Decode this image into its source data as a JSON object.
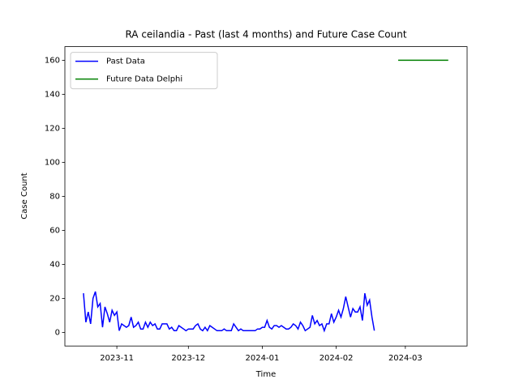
{
  "chart_data": {
    "type": "line",
    "title": "RA ceilandia - Past (last 4 months) and Future Case Count",
    "x_label": "Time",
    "y_label": "Case Count",
    "xlim": [
      19640.2,
      19808.9
    ],
    "ylim": [
      -8,
      168
    ],
    "xticks": [
      {
        "value": 19662,
        "label": "2023-11"
      },
      {
        "value": 19692,
        "label": "2023-12"
      },
      {
        "value": 19723,
        "label": "2024-01"
      },
      {
        "value": 19754,
        "label": "2024-02"
      },
      {
        "value": 19783,
        "label": "2024-03"
      }
    ],
    "yticks": [
      0,
      20,
      40,
      60,
      80,
      100,
      120,
      140,
      160
    ],
    "legend": "upper left",
    "series": [
      {
        "name": "Past Data",
        "color": "#0000ff",
        "x": [
          19648,
          19649,
          19650,
          19651,
          19652,
          19653,
          19654,
          19655,
          19656,
          19657,
          19658,
          19659,
          19660,
          19661,
          19662,
          19663,
          19664,
          19665,
          19666,
          19667,
          19668,
          19669,
          19670,
          19671,
          19672,
          19673,
          19674,
          19675,
          19676,
          19677,
          19678,
          19679,
          19680,
          19681,
          19682,
          19683,
          19684,
          19685,
          19686,
          19687,
          19688,
          19689,
          19690,
          19691,
          19692,
          19693,
          19694,
          19695,
          19696,
          19697,
          19698,
          19699,
          19700,
          19701,
          19702,
          19703,
          19704,
          19705,
          19706,
          19707,
          19708,
          19709,
          19710,
          19711,
          19712,
          19713,
          19714,
          19715,
          19716,
          19717,
          19718,
          19719,
          19720,
          19721,
          19722,
          19723,
          19724,
          19725,
          19726,
          19727,
          19728,
          19729,
          19730,
          19731,
          19732,
          19733,
          19734,
          19735,
          19736,
          19737,
          19738,
          19739,
          19740,
          19741,
          19742,
          19743,
          19744,
          19745,
          19746,
          19747,
          19748,
          19749,
          19750,
          19751,
          19752,
          19753,
          19754,
          19755,
          19756,
          19757,
          19758,
          19759,
          19760,
          19761,
          19762,
          19763,
          19764,
          19765,
          19766,
          19767,
          19768,
          19769,
          19770
        ],
        "values": [
          23,
          6,
          12,
          5,
          20,
          24,
          15,
          17,
          3,
          15,
          11,
          6,
          13,
          10,
          12,
          1,
          5,
          4,
          3,
          4,
          9,
          3,
          4,
          6,
          2,
          2,
          6,
          3,
          6,
          4,
          5,
          2,
          2,
          5,
          5,
          5,
          2,
          3,
          1,
          1,
          4,
          3,
          2,
          1,
          2,
          2,
          2,
          4,
          5,
          2,
          1,
          3,
          1,
          4,
          3,
          2,
          1,
          1,
          1,
          2,
          1,
          1,
          1,
          5,
          3,
          1,
          2,
          1,
          1,
          1,
          1,
          1,
          1,
          2,
          2,
          3,
          3,
          7,
          3,
          2,
          4,
          4,
          3,
          4,
          3,
          2,
          2,
          3,
          5,
          4,
          2,
          6,
          4,
          1,
          2,
          3,
          10,
          5,
          7,
          4,
          5,
          1,
          5,
          5,
          11,
          6,
          9,
          13,
          9,
          14,
          21,
          15,
          9,
          14,
          12,
          12,
          15,
          7,
          23,
          16,
          19,
          9,
          1
        ]
      },
      {
        "name": "Future Data Delphi",
        "color": "#008000",
        "x": [
          19780,
          19801
        ],
        "values": [
          160,
          160
        ]
      }
    ]
  }
}
